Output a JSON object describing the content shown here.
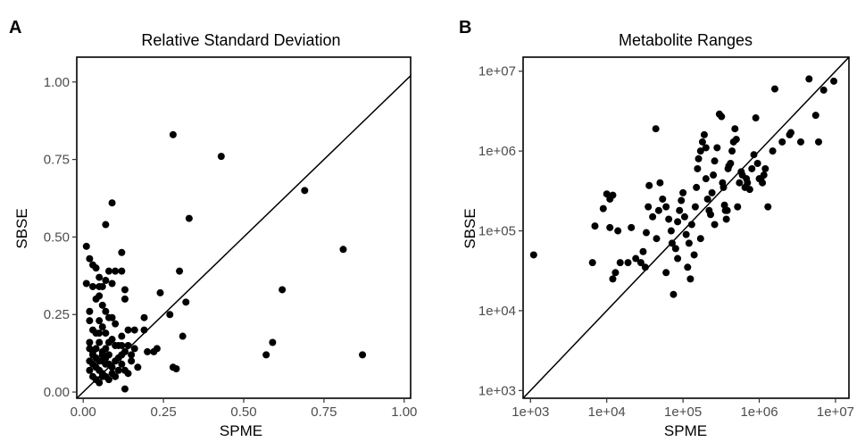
{
  "chart_data": [
    {
      "panel": "A",
      "type": "scatter",
      "title": "Relative Standard Deviation",
      "xlabel": "SPME",
      "ylabel": "SBSE",
      "xlim": [
        -0.02,
        1.02
      ],
      "ylim": [
        -0.02,
        1.08
      ],
      "xticks": [
        0,
        0.25,
        0.5,
        0.75,
        1.0
      ],
      "xtick_labels": [
        "0.00",
        "0.25",
        "0.50",
        "0.75",
        "1.00"
      ],
      "yticks": [
        0,
        0.25,
        0.5,
        0.75,
        1.0
      ],
      "ytick_labels": [
        "0.00",
        "0.25",
        "0.50",
        "0.75",
        "1.00"
      ],
      "reference_line": "y = x",
      "grid": false,
      "points": [
        [
          0.28,
          0.83
        ],
        [
          0.43,
          0.76
        ],
        [
          0.69,
          0.65
        ],
        [
          0.81,
          0.46
        ],
        [
          0.87,
          0.12
        ],
        [
          0.57,
          0.12
        ],
        [
          0.59,
          0.16
        ],
        [
          0.62,
          0.33
        ],
        [
          0.33,
          0.56
        ],
        [
          0.3,
          0.39
        ],
        [
          0.32,
          0.29
        ],
        [
          0.27,
          0.25
        ],
        [
          0.24,
          0.32
        ],
        [
          0.31,
          0.18
        ],
        [
          0.28,
          0.08
        ],
        [
          0.29,
          0.075
        ],
        [
          0.23,
          0.14
        ],
        [
          0.22,
          0.13
        ],
        [
          0.2,
          0.13
        ],
        [
          0.19,
          0.2
        ],
        [
          0.19,
          0.24
        ],
        [
          0.16,
          0.2
        ],
        [
          0.14,
          0.2
        ],
        [
          0.13,
          0.3
        ],
        [
          0.17,
          0.08
        ],
        [
          0.15,
          0.1
        ],
        [
          0.14,
          0.06
        ],
        [
          0.13,
          0.01
        ],
        [
          0.12,
          0.15
        ],
        [
          0.12,
          0.12
        ],
        [
          0.14,
          0.15
        ],
        [
          0.13,
          0.13
        ],
        [
          0.12,
          0.18
        ],
        [
          0.1,
          0.22
        ],
        [
          0.09,
          0.61
        ],
        [
          0.07,
          0.54
        ],
        [
          0.12,
          0.45
        ],
        [
          0.12,
          0.39
        ],
        [
          0.13,
          0.33
        ],
        [
          0.1,
          0.39
        ],
        [
          0.08,
          0.39
        ],
        [
          0.09,
          0.35
        ],
        [
          0.07,
          0.36
        ],
        [
          0.06,
          0.34
        ],
        [
          0.05,
          0.34
        ],
        [
          0.04,
          0.3
        ],
        [
          0.05,
          0.31
        ],
        [
          0.06,
          0.28
        ],
        [
          0.07,
          0.26
        ],
        [
          0.09,
          0.24
        ],
        [
          0.08,
          0.24
        ],
        [
          0.01,
          0.47
        ],
        [
          0.02,
          0.43
        ],
        [
          0.03,
          0.41
        ],
        [
          0.04,
          0.4
        ],
        [
          0.05,
          0.37
        ],
        [
          0.01,
          0.35
        ],
        [
          0.03,
          0.34
        ],
        [
          0.02,
          0.26
        ],
        [
          0.02,
          0.23
        ],
        [
          0.05,
          0.23
        ],
        [
          0.06,
          0.21
        ],
        [
          0.03,
          0.2
        ],
        [
          0.04,
          0.19
        ],
        [
          0.05,
          0.19
        ],
        [
          0.07,
          0.19
        ],
        [
          0.09,
          0.17
        ],
        [
          0.08,
          0.16
        ],
        [
          0.1,
          0.15
        ],
        [
          0.11,
          0.15
        ],
        [
          0.07,
          0.14
        ],
        [
          0.06,
          0.13
        ],
        [
          0.02,
          0.16
        ],
        [
          0.02,
          0.14
        ],
        [
          0.03,
          0.12
        ],
        [
          0.04,
          0.11
        ],
        [
          0.05,
          0.1
        ],
        [
          0.06,
          0.1
        ],
        [
          0.07,
          0.09
        ],
        [
          0.08,
          0.09
        ],
        [
          0.09,
          0.08
        ],
        [
          0.1,
          0.1
        ],
        [
          0.11,
          0.11
        ],
        [
          0.12,
          0.09
        ],
        [
          0.04,
          0.08
        ],
        [
          0.05,
          0.07
        ],
        [
          0.06,
          0.06
        ],
        [
          0.07,
          0.05
        ],
        [
          0.08,
          0.04
        ],
        [
          0.03,
          0.05
        ],
        [
          0.04,
          0.04
        ],
        [
          0.05,
          0.03
        ],
        [
          0.06,
          0.05
        ],
        [
          0.02,
          0.07
        ],
        [
          0.03,
          0.09
        ],
        [
          0.02,
          0.1
        ],
        [
          0.09,
          0.06
        ],
        [
          0.1,
          0.05
        ],
        [
          0.11,
          0.07
        ],
        [
          0.13,
          0.07
        ],
        [
          0.15,
          0.12
        ],
        [
          0.16,
          0.14
        ],
        [
          0.04,
          0.14
        ],
        [
          0.05,
          0.16
        ],
        [
          0.06,
          0.12
        ],
        [
          0.08,
          0.12
        ],
        [
          0.03,
          0.13
        ],
        [
          0.07,
          0.11
        ]
      ]
    },
    {
      "panel": "B",
      "type": "scatter",
      "title": "Metabolite Ranges",
      "xlabel": "SPME",
      "ylabel": "SBSE",
      "scale": "log10",
      "xlim": [
        800,
        15000000
      ],
      "ylim": [
        800,
        15000000
      ],
      "xticks": [
        1000,
        10000,
        100000,
        1000000,
        10000000
      ],
      "xtick_labels": [
        "1e+03",
        "1e+04",
        "1e+05",
        "1e+06",
        "1e+07"
      ],
      "yticks": [
        1000,
        10000,
        100000,
        1000000,
        10000000
      ],
      "ytick_labels": [
        "1e+03",
        "1e+04",
        "1e+05",
        "1e+06",
        "1e+07"
      ],
      "reference_line": "y = x",
      "grid": false,
      "points": [
        [
          1100,
          50000
        ],
        [
          6500,
          40000
        ],
        [
          7000,
          115000
        ],
        [
          9000,
          190000
        ],
        [
          10000,
          290000
        ],
        [
          11000,
          250000
        ],
        [
          12000,
          280000
        ],
        [
          11000,
          110000
        ],
        [
          14000,
          100000
        ],
        [
          15000,
          40000
        ],
        [
          19000,
          40000
        ],
        [
          21000,
          110000
        ],
        [
          12000,
          25000
        ],
        [
          13000,
          30000
        ],
        [
          24000,
          45000
        ],
        [
          28000,
          40000
        ],
        [
          30000,
          55000
        ],
        [
          32000,
          35000
        ],
        [
          33000,
          95000
        ],
        [
          35000,
          200000
        ],
        [
          36000,
          370000
        ],
        [
          44000,
          1900000
        ],
        [
          50000,
          400000
        ],
        [
          48000,
          180000
        ],
        [
          54000,
          250000
        ],
        [
          60000,
          200000
        ],
        [
          65000,
          140000
        ],
        [
          70000,
          100000
        ],
        [
          72000,
          70000
        ],
        [
          80000,
          60000
        ],
        [
          85000,
          130000
        ],
        [
          90000,
          180000
        ],
        [
          95000,
          240000
        ],
        [
          100000,
          300000
        ],
        [
          105000,
          150000
        ],
        [
          110000,
          90000
        ],
        [
          75000,
          16000
        ],
        [
          115000,
          35000
        ],
        [
          125000,
          25000
        ],
        [
          120000,
          70000
        ],
        [
          130000,
          120000
        ],
        [
          145000,
          200000
        ],
        [
          150000,
          350000
        ],
        [
          155000,
          600000
        ],
        [
          160000,
          800000
        ],
        [
          170000,
          1000000
        ],
        [
          180000,
          1300000
        ],
        [
          190000,
          1600000
        ],
        [
          200000,
          450000
        ],
        [
          210000,
          250000
        ],
        [
          220000,
          180000
        ],
        [
          230000,
          160000
        ],
        [
          240000,
          300000
        ],
        [
          250000,
          500000
        ],
        [
          260000,
          750000
        ],
        [
          280000,
          1100000
        ],
        [
          300000,
          2900000
        ],
        [
          320000,
          2700000
        ],
        [
          330000,
          400000
        ],
        [
          340000,
          350000
        ],
        [
          350000,
          210000
        ],
        [
          360000,
          180000
        ],
        [
          370000,
          140000
        ],
        [
          380000,
          180000
        ],
        [
          390000,
          600000
        ],
        [
          400000,
          650000
        ],
        [
          420000,
          700000
        ],
        [
          440000,
          1000000
        ],
        [
          460000,
          1300000
        ],
        [
          480000,
          1900000
        ],
        [
          500000,
          1400000
        ],
        [
          520000,
          200000
        ],
        [
          550000,
          400000
        ],
        [
          580000,
          550000
        ],
        [
          600000,
          500000
        ],
        [
          650000,
          350000
        ],
        [
          680000,
          450000
        ],
        [
          700000,
          400000
        ],
        [
          750000,
          330000
        ],
        [
          800000,
          600000
        ],
        [
          850000,
          900000
        ],
        [
          900000,
          2600000
        ],
        [
          950000,
          700000
        ],
        [
          1000000,
          450000
        ],
        [
          1050000,
          450000
        ],
        [
          1100000,
          400000
        ],
        [
          1150000,
          500000
        ],
        [
          1200000,
          600000
        ],
        [
          1300000,
          200000
        ],
        [
          1500000,
          1000000
        ],
        [
          1600000,
          6000000
        ],
        [
          2000000,
          1300000
        ],
        [
          2500000,
          1600000
        ],
        [
          2600000,
          1700000
        ],
        [
          3500000,
          1300000
        ],
        [
          4500000,
          8000000
        ],
        [
          5500000,
          2800000
        ],
        [
          6000000,
          1300000
        ],
        [
          7000000,
          5800000
        ],
        [
          9500000,
          7500000
        ],
        [
          40000,
          150000
        ],
        [
          45000,
          80000
        ],
        [
          60000,
          30000
        ],
        [
          85000,
          45000
        ],
        [
          140000,
          50000
        ],
        [
          170000,
          80000
        ],
        [
          260000,
          120000
        ],
        [
          200000,
          1100000
        ]
      ]
    }
  ]
}
